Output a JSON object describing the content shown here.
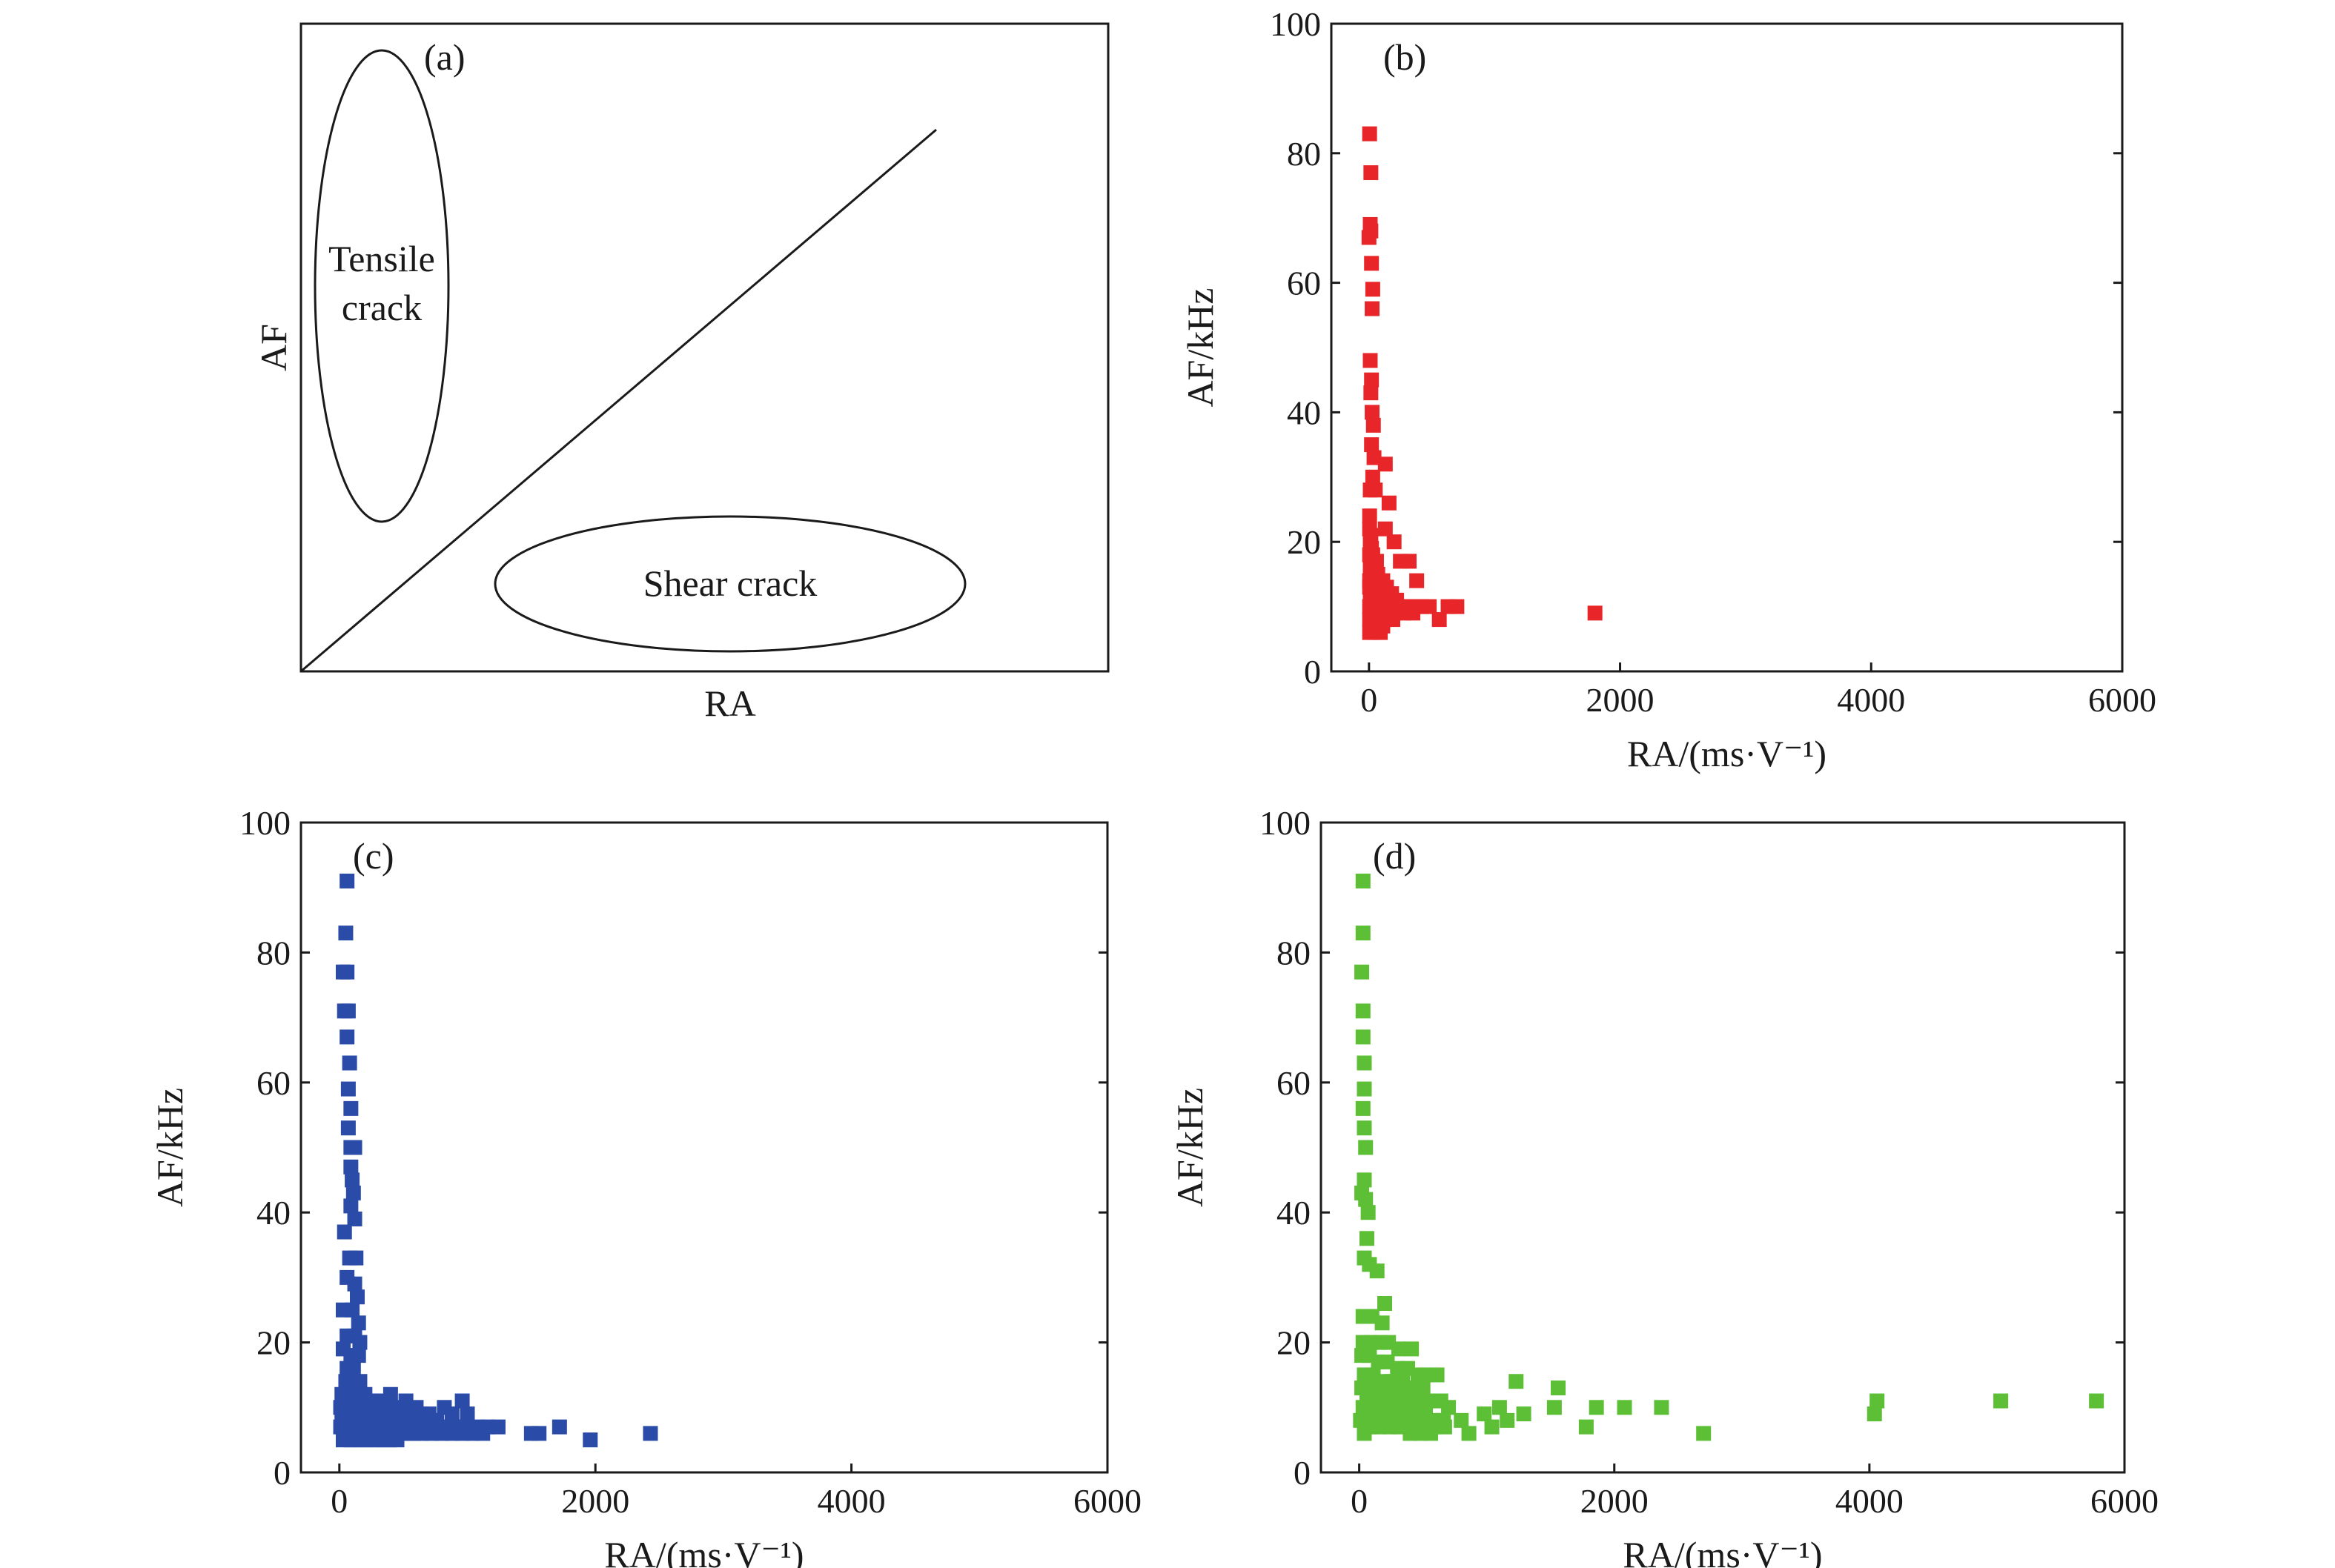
{
  "schematic": {
    "panel_label": "(a)",
    "xlabel": "RA",
    "ylabel": "AF",
    "tensile_label_line1": "Tensile",
    "tensile_label_line2": "crack",
    "shear_label": "Shear crack"
  },
  "chart_data": [
    {
      "panel_label": "(b)",
      "type": "scatter",
      "xlabel": "RA/(ms·V⁻¹)",
      "ylabel": "AF/kHz",
      "xlim": [
        -300,
        6000
      ],
      "ylim": [
        0,
        100
      ],
      "xticks": [
        0,
        2000,
        4000,
        6000
      ],
      "yticks": [
        0,
        20,
        40,
        60,
        80,
        100
      ],
      "grid": false,
      "color": "#e8262a",
      "points": [
        [
          5,
          83
        ],
        [
          15,
          77
        ],
        [
          10,
          69
        ],
        [
          15,
          68
        ],
        [
          0,
          67
        ],
        [
          20,
          63
        ],
        [
          30,
          59
        ],
        [
          25,
          56
        ],
        [
          10,
          48
        ],
        [
          20,
          45
        ],
        [
          15,
          43
        ],
        [
          25,
          40
        ],
        [
          35,
          38
        ],
        [
          20,
          35
        ],
        [
          40,
          33
        ],
        [
          30,
          30
        ],
        [
          10,
          28
        ],
        [
          50,
          28
        ],
        [
          130,
          32
        ],
        [
          160,
          26
        ],
        [
          5,
          24
        ],
        [
          5,
          22
        ],
        [
          15,
          21
        ],
        [
          10,
          20
        ],
        [
          20,
          19
        ],
        [
          5,
          18
        ],
        [
          30,
          18
        ],
        [
          60,
          17
        ],
        [
          10,
          16
        ],
        [
          40,
          16
        ],
        [
          70,
          15
        ],
        [
          5,
          14
        ],
        [
          25,
          14
        ],
        [
          50,
          14
        ],
        [
          110,
          14
        ],
        [
          5,
          13
        ],
        [
          35,
          13
        ],
        [
          80,
          13
        ],
        [
          140,
          13
        ],
        [
          15,
          12
        ],
        [
          60,
          12
        ],
        [
          120,
          12
        ],
        [
          180,
          12
        ],
        [
          10,
          11
        ],
        [
          45,
          11
        ],
        [
          90,
          11
        ],
        [
          150,
          11
        ],
        [
          220,
          11
        ],
        [
          5,
          10
        ],
        [
          30,
          10
        ],
        [
          70,
          10
        ],
        [
          110,
          10
        ],
        [
          170,
          10
        ],
        [
          240,
          10
        ],
        [
          300,
          10
        ],
        [
          360,
          10
        ],
        [
          420,
          10
        ],
        [
          480,
          10
        ],
        [
          15,
          9
        ],
        [
          55,
          9
        ],
        [
          100,
          9
        ],
        [
          140,
          9
        ],
        [
          200,
          9
        ],
        [
          280,
          9
        ],
        [
          350,
          9
        ],
        [
          5,
          8
        ],
        [
          40,
          8
        ],
        [
          85,
          8
        ],
        [
          130,
          8
        ],
        [
          190,
          8
        ],
        [
          20,
          7
        ],
        [
          60,
          7
        ],
        [
          110,
          7
        ],
        [
          5,
          6
        ],
        [
          40,
          6
        ],
        [
          90,
          6
        ],
        [
          130,
          22
        ],
        [
          200,
          20
        ],
        [
          250,
          17
        ],
        [
          320,
          17
        ],
        [
          380,
          14
        ],
        [
          560,
          8
        ],
        [
          630,
          10
        ],
        [
          700,
          10
        ],
        [
          1800,
          9
        ]
      ]
    },
    {
      "panel_label": "(c)",
      "type": "scatter",
      "xlabel": "RA/(ms·V⁻¹)",
      "ylabel": "AF/kHz",
      "xlim": [
        -300,
        6000
      ],
      "ylim": [
        0,
        100
      ],
      "xticks": [
        0,
        2000,
        4000,
        6000
      ],
      "yticks": [
        0,
        20,
        40,
        60,
        80,
        100
      ],
      "grid": false,
      "color": "#2b4ba8",
      "points": [
        [
          60,
          91
        ],
        [
          50,
          83
        ],
        [
          30,
          77
        ],
        [
          60,
          77
        ],
        [
          40,
          71
        ],
        [
          70,
          71
        ],
        [
          60,
          67
        ],
        [
          80,
          63
        ],
        [
          70,
          59
        ],
        [
          90,
          56
        ],
        [
          70,
          53
        ],
        [
          90,
          50
        ],
        [
          120,
          50
        ],
        [
          90,
          47
        ],
        [
          100,
          45
        ],
        [
          110,
          43
        ],
        [
          90,
          41
        ],
        [
          120,
          39
        ],
        [
          40,
          37
        ],
        [
          80,
          33
        ],
        [
          130,
          33
        ],
        [
          60,
          30
        ],
        [
          120,
          29
        ],
        [
          140,
          27
        ],
        [
          30,
          25
        ],
        [
          100,
          25
        ],
        [
          150,
          23
        ],
        [
          60,
          21
        ],
        [
          120,
          21
        ],
        [
          160,
          20
        ],
        [
          30,
          19
        ],
        [
          90,
          18
        ],
        [
          150,
          18
        ],
        [
          60,
          16
        ],
        [
          110,
          16
        ],
        [
          50,
          14
        ],
        [
          160,
          14
        ],
        [
          20,
          12
        ],
        [
          80,
          12
        ],
        [
          140,
          12
        ],
        [
          200,
          12
        ],
        [
          260,
          11
        ],
        [
          320,
          11
        ],
        [
          400,
          12
        ],
        [
          520,
          11
        ],
        [
          10,
          10
        ],
        [
          60,
          10
        ],
        [
          120,
          10
        ],
        [
          180,
          10
        ],
        [
          240,
          10
        ],
        [
          300,
          10
        ],
        [
          360,
          10
        ],
        [
          440,
          10
        ],
        [
          600,
          10
        ],
        [
          700,
          9
        ],
        [
          820,
          10
        ],
        [
          960,
          11
        ],
        [
          30,
          9
        ],
        [
          90,
          9
        ],
        [
          150,
          9
        ],
        [
          210,
          9
        ],
        [
          270,
          9
        ],
        [
          330,
          9
        ],
        [
          390,
          9
        ],
        [
          460,
          9
        ],
        [
          540,
          9
        ],
        [
          640,
          9
        ],
        [
          740,
          8
        ],
        [
          880,
          9
        ],
        [
          1000,
          9
        ],
        [
          20,
          8
        ],
        [
          80,
          8
        ],
        [
          140,
          8
        ],
        [
          200,
          8
        ],
        [
          260,
          8
        ],
        [
          320,
          8
        ],
        [
          380,
          8
        ],
        [
          450,
          8
        ],
        [
          520,
          8
        ],
        [
          600,
          8
        ],
        [
          680,
          7
        ],
        [
          760,
          8
        ],
        [
          840,
          7
        ],
        [
          920,
          7
        ],
        [
          1000,
          7
        ],
        [
          1080,
          7
        ],
        [
          1160,
          7
        ],
        [
          1240,
          7
        ],
        [
          10,
          7
        ],
        [
          70,
          7
        ],
        [
          130,
          7
        ],
        [
          190,
          7
        ],
        [
          250,
          7
        ],
        [
          310,
          7
        ],
        [
          370,
          7
        ],
        [
          430,
          7
        ],
        [
          500,
          7
        ],
        [
          570,
          7
        ],
        [
          640,
          6
        ],
        [
          720,
          6
        ],
        [
          800,
          6
        ],
        [
          880,
          6
        ],
        [
          960,
          6
        ],
        [
          1040,
          6
        ],
        [
          1120,
          6
        ],
        [
          40,
          6
        ],
        [
          100,
          6
        ],
        [
          160,
          6
        ],
        [
          220,
          6
        ],
        [
          280,
          6
        ],
        [
          340,
          6
        ],
        [
          400,
          6
        ],
        [
          460,
          6
        ],
        [
          520,
          6
        ],
        [
          580,
          6
        ],
        [
          30,
          5
        ],
        [
          90,
          5
        ],
        [
          150,
          5
        ],
        [
          210,
          5
        ],
        [
          270,
          5
        ],
        [
          330,
          5
        ],
        [
          390,
          5
        ],
        [
          450,
          5
        ],
        [
          1500,
          6
        ],
        [
          1560,
          6
        ],
        [
          1720,
          7
        ],
        [
          1960,
          5
        ],
        [
          2430,
          6
        ]
      ]
    },
    {
      "panel_label": "(d)",
      "type": "scatter",
      "xlabel": "RA/(ms·V⁻¹)",
      "ylabel": "AF/kHz",
      "xlim": [
        -300,
        6000
      ],
      "ylim": [
        0,
        100
      ],
      "xticks": [
        0,
        2000,
        4000,
        6000
      ],
      "yticks": [
        0,
        20,
        40,
        60,
        80,
        100
      ],
      "grid": false,
      "color": "#5cbf35",
      "points": [
        [
          30,
          91
        ],
        [
          30,
          83
        ],
        [
          20,
          77
        ],
        [
          30,
          71
        ],
        [
          30,
          67
        ],
        [
          40,
          63
        ],
        [
          40,
          59
        ],
        [
          30,
          56
        ],
        [
          40,
          53
        ],
        [
          50,
          50
        ],
        [
          40,
          45
        ],
        [
          20,
          43
        ],
        [
          50,
          42
        ],
        [
          70,
          40
        ],
        [
          60,
          36
        ],
        [
          40,
          33
        ],
        [
          80,
          32
        ],
        [
          140,
          31
        ],
        [
          30,
          24
        ],
        [
          100,
          24
        ],
        [
          200,
          26
        ],
        [
          180,
          23
        ],
        [
          30,
          20
        ],
        [
          90,
          20
        ],
        [
          160,
          20
        ],
        [
          230,
          20
        ],
        [
          310,
          19
        ],
        [
          410,
          19
        ],
        [
          20,
          18
        ],
        [
          80,
          18
        ],
        [
          150,
          17
        ],
        [
          220,
          17
        ],
        [
          300,
          16
        ],
        [
          380,
          16
        ],
        [
          460,
          15
        ],
        [
          520,
          15
        ],
        [
          610,
          15
        ],
        [
          40,
          15
        ],
        [
          110,
          15
        ],
        [
          180,
          14
        ],
        [
          260,
          14
        ],
        [
          340,
          14
        ],
        [
          420,
          13
        ],
        [
          500,
          13
        ],
        [
          20,
          13
        ],
        [
          90,
          13
        ],
        [
          160,
          12
        ],
        [
          240,
          12
        ],
        [
          320,
          12
        ],
        [
          400,
          12
        ],
        [
          480,
          11
        ],
        [
          560,
          11
        ],
        [
          640,
          11
        ],
        [
          60,
          11
        ],
        [
          130,
          11
        ],
        [
          200,
          11
        ],
        [
          280,
          10
        ],
        [
          360,
          10
        ],
        [
          440,
          10
        ],
        [
          520,
          10
        ],
        [
          700,
          10
        ],
        [
          30,
          10
        ],
        [
          100,
          10
        ],
        [
          170,
          9
        ],
        [
          250,
          9
        ],
        [
          330,
          9
        ],
        [
          410,
          9
        ],
        [
          490,
          9
        ],
        [
          580,
          8
        ],
        [
          660,
          8
        ],
        [
          50,
          9
        ],
        [
          120,
          8
        ],
        [
          190,
          8
        ],
        [
          270,
          8
        ],
        [
          350,
          8
        ],
        [
          430,
          8
        ],
        [
          510,
          7
        ],
        [
          590,
          7
        ],
        [
          670,
          7
        ],
        [
          10,
          8
        ],
        [
          80,
          7
        ],
        [
          160,
          7
        ],
        [
          240,
          7
        ],
        [
          320,
          7
        ],
        [
          400,
          6
        ],
        [
          480,
          6
        ],
        [
          560,
          6
        ],
        [
          40,
          6
        ],
        [
          860,
          6
        ],
        [
          800,
          8
        ],
        [
          980,
          9
        ],
        [
          1040,
          7
        ],
        [
          1100,
          10
        ],
        [
          1160,
          8
        ],
        [
          1230,
          14
        ],
        [
          1290,
          9
        ],
        [
          1530,
          10
        ],
        [
          1560,
          13
        ],
        [
          1780,
          7
        ],
        [
          1860,
          10
        ],
        [
          2080,
          10
        ],
        [
          2370,
          10
        ],
        [
          2700,
          6
        ],
        [
          4040,
          9
        ],
        [
          4060,
          11
        ],
        [
          5030,
          11
        ],
        [
          5780,
          11
        ]
      ]
    }
  ]
}
